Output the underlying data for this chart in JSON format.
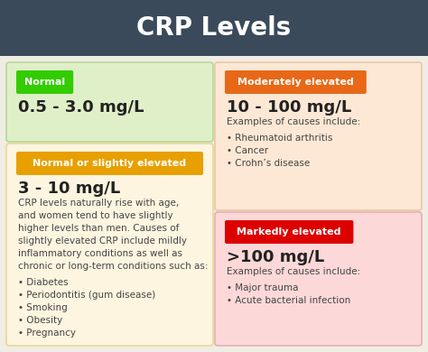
{
  "title": "CRP Levels",
  "title_bg": "#3a4a5a",
  "title_color": "#ffffff",
  "title_fontsize": 20,
  "fig_bg": "#e8e8e0",
  "content_bg": "#f0ede5",
  "boxes": [
    {
      "id": "normal",
      "col": 0,
      "row": 0,
      "bg": "#dff0c8",
      "border": "#b8d898",
      "tag_text": "Normal",
      "tag_bg": "#33cc00",
      "tag_color": "#ffffff",
      "value_text": "0.5 - 3.0 mg/L",
      "value_fontsize": 13,
      "body_lines": []
    },
    {
      "id": "slightly",
      "col": 0,
      "row": 1,
      "bg": "#fdf5e0",
      "border": "#e8d898",
      "tag_text": "Normal or slightly elevated",
      "tag_bg": "#e8a000",
      "tag_color": "#ffffff",
      "value_text": "3 - 10 mg/L",
      "value_fontsize": 13,
      "body_lines": [
        "CRP levels naturally rise with age,",
        "and women tend to have slightly",
        "higher levels than men. Causes of",
        "slightly elevated CRP include mildly",
        "inflammatory conditions as well as",
        "chronic or long-term conditions such as:",
        "",
        "• Diabetes",
        "• Periodontitis (gum disease)",
        "• Smoking",
        "• Obesity",
        "• Pregnancy"
      ]
    },
    {
      "id": "moderate",
      "col": 1,
      "row": 0,
      "bg": "#fde8d5",
      "border": "#e8c8a8",
      "tag_text": "Moderately elevated",
      "tag_bg": "#e86818",
      "tag_color": "#ffffff",
      "value_text": "10 - 100 mg/L",
      "value_fontsize": 13,
      "body_lines": [
        "Examples of causes include:",
        "",
        "• Rheumatoid arthritis",
        "• Cancer",
        "• Crohn’s disease"
      ]
    },
    {
      "id": "marked",
      "col": 1,
      "row": 1,
      "bg": "#fdd8d8",
      "border": "#e8b0b0",
      "tag_text": "Markedly elevated",
      "tag_bg": "#dd0000",
      "tag_color": "#ffffff",
      "value_text": ">100 mg/L",
      "value_fontsize": 13,
      "body_lines": [
        "Examples of causes include:",
        "",
        "• Major trauma",
        "• Acute bacterial infection"
      ]
    }
  ]
}
